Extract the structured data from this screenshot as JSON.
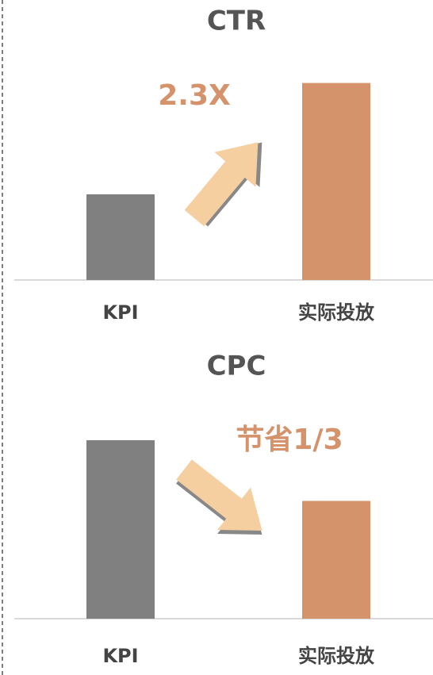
{
  "chart_data": [
    {
      "type": "bar",
      "title": "CTR",
      "categories": [
        "KPI",
        "实际投放"
      ],
      "values": [
        1,
        2.3
      ],
      "colors": [
        "#808080",
        "#d4936b"
      ],
      "ylim": [
        0,
        2.5
      ],
      "annotation": "2.3X"
    },
    {
      "type": "bar",
      "title": "CPC",
      "categories": [
        "KPI",
        "实际投放"
      ],
      "values": [
        1,
        0.66
      ],
      "colors": [
        "#808080",
        "#d4936b"
      ],
      "ylim": [
        0,
        1.2
      ],
      "annotation": "节省1/3"
    }
  ]
}
